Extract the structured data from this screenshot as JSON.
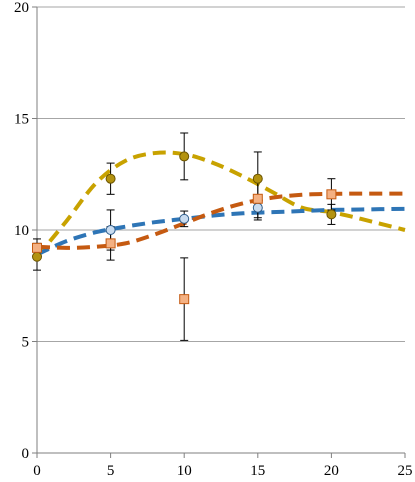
{
  "chart_data": {
    "type": "scatter",
    "title": "",
    "xlabel": "",
    "ylabel": "",
    "xlim": [
      0,
      25
    ],
    "ylim": [
      0,
      20
    ],
    "x_ticks": [
      0,
      5,
      10,
      15,
      20,
      25
    ],
    "y_ticks": [
      0,
      5,
      10,
      15,
      20
    ],
    "x_tick_labels": [
      "0",
      "5",
      "10",
      "15",
      "20",
      "25"
    ],
    "y_tick_labels": [
      "0",
      "5",
      "10",
      "15",
      "20"
    ],
    "grid": "horizontal",
    "legend": "none",
    "series": [
      {
        "marker": "circle",
        "color": "#C8A200",
        "marker_fill": "#B3920F",
        "marker_edge": "#6B5400",
        "x": [
          0,
          5,
          10,
          15,
          20
        ],
        "y": [
          8.8,
          12.3,
          13.3,
          12.3,
          10.7
        ],
        "err": [
          0.6,
          0.7,
          1.05,
          1.2,
          0.45
        ],
        "fit_x": [
          0,
          2,
          4,
          6,
          8,
          10,
          12,
          14,
          16,
          18,
          20,
          22,
          25
        ],
        "fit_y": [
          8.8,
          10.4,
          12.1,
          13.1,
          13.45,
          13.4,
          13.0,
          12.4,
          11.7,
          11.0,
          10.8,
          10.5,
          10.0
        ]
      },
      {
        "marker": "circle",
        "color": "#2E75B6",
        "marker_fill": "#C9DCF0",
        "marker_edge": "#2E5C8A",
        "x": [
          5,
          10,
          15
        ],
        "y": [
          10.0,
          10.5,
          11.0
        ],
        "err": [
          0.9,
          0.35,
          0.55
        ],
        "fit_x": [
          0,
          2,
          4,
          6,
          8,
          10,
          12,
          14,
          16,
          18,
          20,
          22,
          25
        ],
        "fit_y": [
          8.9,
          9.5,
          9.9,
          10.15,
          10.35,
          10.5,
          10.65,
          10.75,
          10.8,
          10.85,
          10.9,
          10.92,
          10.95
        ]
      },
      {
        "marker": "square",
        "color": "#C55A11",
        "marker_fill": "#F4B183",
        "marker_edge": "#C55A11",
        "x": [
          0,
          5,
          10,
          15,
          20
        ],
        "y": [
          9.2,
          9.4,
          6.9,
          11.4,
          11.6
        ],
        "err": [
          0.4,
          0.75,
          1.85,
          0.85,
          0.7
        ],
        "fit_x": [
          0,
          2,
          4,
          6,
          8,
          10,
          12,
          14,
          16,
          18,
          20,
          22,
          25
        ],
        "fit_y": [
          9.25,
          9.2,
          9.25,
          9.4,
          9.8,
          10.3,
          10.8,
          11.2,
          11.45,
          11.58,
          11.62,
          11.63,
          11.63
        ]
      }
    ]
  }
}
